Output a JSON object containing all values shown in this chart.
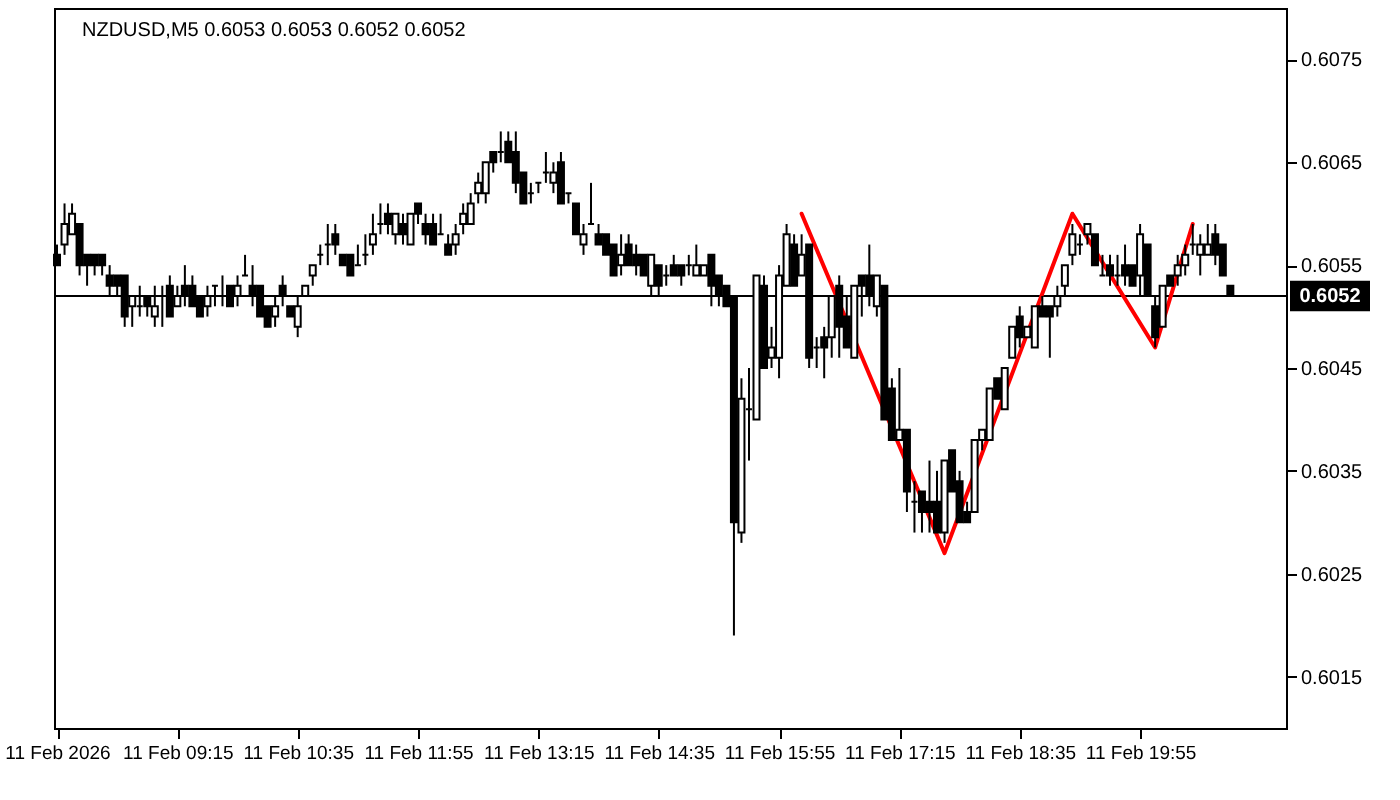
{
  "chart_data": {
    "type": "candlestick",
    "title": "NZDUSD,M5  0.6053 0.6053 0.6052 0.6052",
    "x": [
      "2026-02-11T07:55",
      "2026-02-11T08:00",
      "2026-02-11T08:05",
      "2026-02-11T08:10",
      "2026-02-11T08:15",
      "2026-02-11T08:20",
      "2026-02-11T08:25",
      "2026-02-11T08:30",
      "2026-02-11T08:35",
      "2026-02-11T08:40",
      "2026-02-11T08:45",
      "2026-02-11T08:50",
      "2026-02-11T08:55",
      "2026-02-11T09:00",
      "2026-02-11T09:05",
      "2026-02-11T09:10",
      "2026-02-11T09:15",
      "2026-02-11T09:20",
      "2026-02-11T09:25",
      "2026-02-11T09:30",
      "2026-02-11T09:35",
      "2026-02-11T09:40",
      "2026-02-11T09:45",
      "2026-02-11T09:50",
      "2026-02-11T09:55",
      "2026-02-11T10:00",
      "2026-02-11T10:05",
      "2026-02-11T10:10",
      "2026-02-11T10:15",
      "2026-02-11T10:20",
      "2026-02-11T10:25",
      "2026-02-11T10:30",
      "2026-02-11T10:35",
      "2026-02-11T10:40",
      "2026-02-11T10:45",
      "2026-02-11T10:50",
      "2026-02-11T10:55",
      "2026-02-11T11:00",
      "2026-02-11T11:05",
      "2026-02-11T11:10",
      "2026-02-11T11:15",
      "2026-02-11T11:20",
      "2026-02-11T11:25",
      "2026-02-11T11:30",
      "2026-02-11T11:35",
      "2026-02-11T11:40",
      "2026-02-11T11:45",
      "2026-02-11T11:50",
      "2026-02-11T11:55",
      "2026-02-11T12:00",
      "2026-02-11T12:05",
      "2026-02-11T12:10",
      "2026-02-11T12:15",
      "2026-02-11T12:20",
      "2026-02-11T12:25",
      "2026-02-11T12:30",
      "2026-02-11T12:35",
      "2026-02-11T12:40",
      "2026-02-11T12:45",
      "2026-02-11T12:50",
      "2026-02-11T12:55",
      "2026-02-11T13:00",
      "2026-02-11T13:05",
      "2026-02-11T13:10",
      "2026-02-11T13:15",
      "2026-02-11T13:20",
      "2026-02-11T13:25",
      "2026-02-11T13:30",
      "2026-02-11T13:35",
      "2026-02-11T13:40",
      "2026-02-11T13:45",
      "2026-02-11T13:50",
      "2026-02-11T13:55",
      "2026-02-11T14:00",
      "2026-02-11T14:05",
      "2026-02-11T14:10",
      "2026-02-11T14:15",
      "2026-02-11T14:20",
      "2026-02-11T14:25",
      "2026-02-11T14:30",
      "2026-02-11T14:35",
      "2026-02-11T14:40",
      "2026-02-11T14:45",
      "2026-02-11T14:50",
      "2026-02-11T14:55",
      "2026-02-11T15:00",
      "2026-02-11T15:05",
      "2026-02-11T15:10",
      "2026-02-11T15:15",
      "2026-02-11T15:20",
      "2026-02-11T15:25",
      "2026-02-11T15:30",
      "2026-02-11T15:35",
      "2026-02-11T15:40",
      "2026-02-11T15:45",
      "2026-02-11T15:50",
      "2026-02-11T15:55",
      "2026-02-11T16:00",
      "2026-02-11T16:05",
      "2026-02-11T16:10",
      "2026-02-11T16:15",
      "2026-02-11T16:20",
      "2026-02-11T16:25",
      "2026-02-11T16:30",
      "2026-02-11T16:35",
      "2026-02-11T16:40",
      "2026-02-11T16:45",
      "2026-02-11T16:50",
      "2026-02-11T16:55",
      "2026-02-11T17:00",
      "2026-02-11T17:05",
      "2026-02-11T17:10",
      "2026-02-11T17:15",
      "2026-02-11T17:20",
      "2026-02-11T17:25",
      "2026-02-11T17:30",
      "2026-02-11T17:35",
      "2026-02-11T17:40",
      "2026-02-11T17:45",
      "2026-02-11T17:50",
      "2026-02-11T17:55",
      "2026-02-11T18:00",
      "2026-02-11T18:05",
      "2026-02-11T18:10",
      "2026-02-11T18:15",
      "2026-02-11T18:20",
      "2026-02-11T18:25",
      "2026-02-11T18:30",
      "2026-02-11T18:35",
      "2026-02-11T18:40",
      "2026-02-11T18:45",
      "2026-02-11T18:50",
      "2026-02-11T18:55",
      "2026-02-11T19:00",
      "2026-02-11T19:05",
      "2026-02-11T19:10",
      "2026-02-11T19:15",
      "2026-02-11T19:20",
      "2026-02-11T19:25",
      "2026-02-11T19:30",
      "2026-02-11T19:35",
      "2026-02-11T19:40",
      "2026-02-11T19:45",
      "2026-02-11T19:50",
      "2026-02-11T19:55",
      "2026-02-11T20:00",
      "2026-02-11T20:05",
      "2026-02-11T20:10",
      "2026-02-11T20:15",
      "2026-02-11T20:20",
      "2026-02-11T20:25",
      "2026-02-11T20:30",
      "2026-02-11T20:35",
      "2026-02-11T20:40",
      "2026-02-11T20:45",
      "2026-02-11T20:50",
      "2026-02-11T20:55"
    ],
    "ohlc": [
      [
        0.6056,
        0.6057,
        0.6055,
        0.6055
      ],
      [
        0.6057,
        0.6061,
        0.6056,
        0.6059
      ],
      [
        0.6058,
        0.6061,
        0.6058,
        0.606
      ],
      [
        0.6059,
        0.6059,
        0.6054,
        0.6055
      ],
      [
        0.6056,
        0.6056,
        0.6053,
        0.6055
      ],
      [
        0.6056,
        0.6056,
        0.6054,
        0.6055
      ],
      [
        0.6056,
        0.6056,
        0.6054,
        0.6055
      ],
      [
        0.6054,
        0.6055,
        0.6052,
        0.6053
      ],
      [
        0.6054,
        0.6054,
        0.6052,
        0.6053
      ],
      [
        0.6054,
        0.6054,
        0.6049,
        0.605
      ],
      [
        0.6051,
        0.6052,
        0.6049,
        0.6052
      ],
      [
        0.6051,
        0.6053,
        0.605,
        0.6051
      ],
      [
        0.6052,
        0.6052,
        0.605,
        0.6051
      ],
      [
        0.605,
        0.6053,
        0.6049,
        0.6051
      ],
      [
        0.6052,
        0.6053,
        0.6049,
        0.6052
      ],
      [
        0.6053,
        0.6054,
        0.605,
        0.605
      ],
      [
        0.6051,
        0.6053,
        0.6051,
        0.6052
      ],
      [
        0.6053,
        0.6055,
        0.6051,
        0.6052
      ],
      [
        0.6053,
        0.6054,
        0.6051,
        0.6051
      ],
      [
        0.6052,
        0.6052,
        0.605,
        0.605
      ],
      [
        0.6051,
        0.6053,
        0.605,
        0.6052
      ],
      [
        0.6053,
        0.6053,
        0.6051,
        0.6053
      ],
      [
        0.6052,
        0.6054,
        0.6051,
        0.6052
      ],
      [
        0.6053,
        0.6053,
        0.6051,
        0.6051
      ],
      [
        0.6052,
        0.6054,
        0.6051,
        0.6053
      ],
      [
        0.6054,
        0.6056,
        0.6054,
        0.6054
      ],
      [
        0.6053,
        0.6055,
        0.6051,
        0.6052
      ],
      [
        0.6053,
        0.6053,
        0.605,
        0.605
      ],
      [
        0.6051,
        0.6051,
        0.6049,
        0.6049
      ],
      [
        0.605,
        0.6052,
        0.6049,
        0.6051
      ],
      [
        0.6053,
        0.6054,
        0.6051,
        0.6052
      ],
      [
        0.6051,
        0.6051,
        0.605,
        0.605
      ],
      [
        0.6049,
        0.6052,
        0.6048,
        0.6051
      ],
      [
        0.6052,
        0.6053,
        0.6052,
        0.6053
      ],
      [
        0.6054,
        0.6055,
        0.6053,
        0.6055
      ],
      [
        0.6056,
        0.6057,
        0.6055,
        0.6056
      ],
      [
        0.6057,
        0.6059,
        0.6055,
        0.6057
      ],
      [
        0.6058,
        0.6059,
        0.6056,
        0.6057
      ],
      [
        0.6056,
        0.6056,
        0.6055,
        0.6055
      ],
      [
        0.6056,
        0.6056,
        0.6054,
        0.6054
      ],
      [
        0.6055,
        0.6057,
        0.6055,
        0.6055
      ],
      [
        0.6056,
        0.6058,
        0.6055,
        0.6056
      ],
      [
        0.6057,
        0.606,
        0.6056,
        0.6058
      ],
      [
        0.6059,
        0.6061,
        0.6058,
        0.6059
      ],
      [
        0.606,
        0.6061,
        0.6058,
        0.6059
      ],
      [
        0.6058,
        0.606,
        0.6057,
        0.606
      ],
      [
        0.6059,
        0.606,
        0.6057,
        0.6058
      ],
      [
        0.6057,
        0.606,
        0.6057,
        0.606
      ],
      [
        0.6061,
        0.6061,
        0.6059,
        0.606
      ],
      [
        0.6059,
        0.606,
        0.6057,
        0.6058
      ],
      [
        0.6059,
        0.606,
        0.6057,
        0.6057
      ],
      [
        0.6058,
        0.606,
        0.6058,
        0.6058
      ],
      [
        0.6057,
        0.6058,
        0.6056,
        0.6056
      ],
      [
        0.6057,
        0.6059,
        0.6056,
        0.6058
      ],
      [
        0.6059,
        0.6061,
        0.6058,
        0.606
      ],
      [
        0.6059,
        0.6062,
        0.6059,
        0.6061
      ],
      [
        0.6062,
        0.6064,
        0.6061,
        0.6063
      ],
      [
        0.6062,
        0.6065,
        0.6061,
        0.6065
      ],
      [
        0.6066,
        0.6066,
        0.6064,
        0.6065
      ],
      [
        0.6066,
        0.6068,
        0.6065,
        0.6066
      ],
      [
        0.6067,
        0.6068,
        0.6065,
        0.6065
      ],
      [
        0.6066,
        0.6068,
        0.6062,
        0.6063
      ],
      [
        0.6064,
        0.6064,
        0.6061,
        0.6061
      ],
      [
        0.6062,
        0.6063,
        0.6061,
        0.6062
      ],
      [
        0.6063,
        0.6063,
        0.6062,
        0.6063
      ],
      [
        0.6064,
        0.6066,
        0.6063,
        0.6064
      ],
      [
        0.6063,
        0.6065,
        0.6062,
        0.6064
      ],
      [
        0.6065,
        0.6066,
        0.6061,
        0.6061
      ],
      [
        0.6062,
        0.6062,
        0.6061,
        0.6062
      ],
      [
        0.6061,
        0.6061,
        0.6058,
        0.6058
      ],
      [
        0.6057,
        0.6059,
        0.6056,
        0.6058
      ],
      [
        0.6059,
        0.6063,
        0.6059,
        0.6059
      ],
      [
        0.6058,
        0.6059,
        0.6057,
        0.6057
      ],
      [
        0.6058,
        0.6058,
        0.6056,
        0.6056
      ],
      [
        0.6057,
        0.6057,
        0.6054,
        0.6054
      ],
      [
        0.6055,
        0.6058,
        0.6054,
        0.6056
      ],
      [
        0.6057,
        0.6058,
        0.6055,
        0.6055
      ],
      [
        0.6056,
        0.6057,
        0.6054,
        0.6055
      ],
      [
        0.6056,
        0.6056,
        0.6054,
        0.6054
      ],
      [
        0.6053,
        0.6056,
        0.6052,
        0.6056
      ],
      [
        0.6055,
        0.6055,
        0.6052,
        0.6053
      ],
      [
        0.6054,
        0.6055,
        0.6053,
        0.6054
      ],
      [
        0.6055,
        0.6056,
        0.6054,
        0.6054
      ],
      [
        0.6055,
        0.6055,
        0.6053,
        0.6054
      ],
      [
        0.6055,
        0.6056,
        0.6054,
        0.6055
      ],
      [
        0.6054,
        0.6057,
        0.6054,
        0.6055
      ],
      [
        0.6054,
        0.6055,
        0.6054,
        0.6055
      ],
      [
        0.6056,
        0.6056,
        0.6051,
        0.6053
      ],
      [
        0.6054,
        0.6054,
        0.6051,
        0.6052
      ],
      [
        0.6053,
        0.6053,
        0.6051,
        0.6051
      ],
      [
        0.6052,
        0.6052,
        0.6019,
        0.603
      ],
      [
        0.6029,
        0.6044,
        0.6028,
        0.6042
      ],
      [
        0.6041,
        0.6045,
        0.6036,
        0.6041
      ],
      [
        0.604,
        0.6054,
        0.604,
        0.6054
      ],
      [
        0.6053,
        0.6054,
        0.6045,
        0.6045
      ],
      [
        0.6046,
        0.6049,
        0.6045,
        0.6047
      ],
      [
        0.6046,
        0.6055,
        0.6044,
        0.6054
      ],
      [
        0.6053,
        0.6059,
        0.6053,
        0.6058
      ],
      [
        0.6057,
        0.6058,
        0.6053,
        0.6053
      ],
      [
        0.6054,
        0.6058,
        0.6054,
        0.6056
      ],
      [
        0.6057,
        0.6057,
        0.6045,
        0.6046
      ],
      [
        0.6047,
        0.6048,
        0.6045,
        0.6047
      ],
      [
        0.6048,
        0.6049,
        0.6044,
        0.6047
      ],
      [
        0.6048,
        0.6052,
        0.6046,
        0.6052
      ],
      [
        0.6053,
        0.6054,
        0.6046,
        0.6049
      ],
      [
        0.605,
        0.6052,
        0.6047,
        0.6047
      ],
      [
        0.6046,
        0.6053,
        0.6046,
        0.6053
      ],
      [
        0.6054,
        0.6054,
        0.605,
        0.6053
      ],
      [
        0.6054,
        0.6057,
        0.6051,
        0.6052
      ],
      [
        0.6051,
        0.6054,
        0.605,
        0.6054
      ],
      [
        0.6053,
        0.6053,
        0.604,
        0.604
      ],
      [
        0.6043,
        0.6044,
        0.6038,
        0.6038
      ],
      [
        0.6038,
        0.6045,
        0.6038,
        0.6039
      ],
      [
        0.6039,
        0.6039,
        0.6031,
        0.6033
      ],
      [
        0.6032,
        0.6034,
        0.6029,
        0.6032
      ],
      [
        0.6033,
        0.6033,
        0.6029,
        0.6031
      ],
      [
        0.6032,
        0.6036,
        0.6029,
        0.6031
      ],
      [
        0.6032,
        0.6035,
        0.6029,
        0.6029
      ],
      [
        0.6029,
        0.6036,
        0.6028,
        0.6036
      ],
      [
        0.6037,
        0.6037,
        0.6033,
        0.6033
      ],
      [
        0.6034,
        0.6035,
        0.603,
        0.603
      ],
      [
        0.6031,
        0.6032,
        0.603,
        0.603
      ],
      [
        0.6031,
        0.6038,
        0.6031,
        0.6038
      ],
      [
        0.6038,
        0.6039,
        0.6037,
        0.6039
      ],
      [
        0.6038,
        0.6043,
        0.6038,
        0.6043
      ],
      [
        0.6044,
        0.6044,
        0.6042,
        0.6042
      ],
      [
        0.6041,
        0.6045,
        0.6041,
        0.6045
      ],
      [
        0.6046,
        0.6049,
        0.6046,
        0.6049
      ],
      [
        0.605,
        0.6051,
        0.6047,
        0.6048
      ],
      [
        0.6048,
        0.6049,
        0.6048,
        0.6049
      ],
      [
        0.6047,
        0.6051,
        0.6047,
        0.6051
      ],
      [
        0.6051,
        0.6052,
        0.605,
        0.605
      ],
      [
        0.6051,
        0.6051,
        0.6046,
        0.605
      ],
      [
        0.6051,
        0.6053,
        0.605,
        0.6052
      ],
      [
        0.6053,
        0.6055,
        0.6052,
        0.6055
      ],
      [
        0.6056,
        0.6059,
        0.6055,
        0.6058
      ],
      [
        0.6057,
        0.6058,
        0.6056,
        0.6057
      ],
      [
        0.6058,
        0.6059,
        0.6057,
        0.6059
      ],
      [
        0.6058,
        0.6058,
        0.6055,
        0.6055
      ],
      [
        0.6054,
        0.6056,
        0.6054,
        0.6054
      ],
      [
        0.6055,
        0.6056,
        0.6053,
        0.6054
      ],
      [
        0.6054,
        0.6056,
        0.6053,
        0.6054
      ],
      [
        0.6055,
        0.6057,
        0.6053,
        0.6054
      ],
      [
        0.6055,
        0.6055,
        0.6053,
        0.6053
      ],
      [
        0.6054,
        0.6059,
        0.6052,
        0.6058
      ],
      [
        0.6057,
        0.6057,
        0.6052,
        0.6052
      ],
      [
        0.6051,
        0.6052,
        0.6047,
        0.6048
      ],
      [
        0.6049,
        0.6053,
        0.6049,
        0.6053
      ],
      [
        0.6054,
        0.6054,
        0.6053,
        0.6053
      ],
      [
        0.6054,
        0.6056,
        0.6053,
        0.6055
      ],
      [
        0.6055,
        0.6057,
        0.6054,
        0.6056
      ],
      [
        0.6057,
        0.6059,
        0.6056,
        0.6057
      ],
      [
        0.6056,
        0.6058,
        0.6054,
        0.6057
      ],
      [
        0.6056,
        0.6059,
        0.6056,
        0.6057
      ],
      [
        0.6058,
        0.6059,
        0.6055,
        0.6056
      ],
      [
        0.6057,
        0.6057,
        0.6054,
        0.6054
      ],
      [
        0.6053,
        0.6053,
        0.6052,
        0.6052
      ]
    ],
    "series": [
      {
        "type": "line",
        "color": "#ff0000",
        "x": [
          "2026-02-11T16:10",
          "2026-02-11T17:45",
          "2026-02-11T19:10",
          "2026-02-11T20:05",
          "2026-02-11T20:30"
        ],
        "values": [
          0.606,
          0.6027,
          0.606,
          0.6047,
          0.6059
        ]
      }
    ],
    "xlim": [
      "2026-02-11T07:53",
      "2026-02-11T21:32"
    ],
    "xticks": [
      {
        "value": "2026-02-11T07:55",
        "label": "11 Feb 2026"
      },
      {
        "value": "2026-02-11T09:15",
        "label": "11 Feb 09:15"
      },
      {
        "value": "2026-02-11T10:35",
        "label": "11 Feb 10:35"
      },
      {
        "value": "2026-02-11T11:55",
        "label": "11 Feb 11:55"
      },
      {
        "value": "2026-02-11T13:15",
        "label": "11 Feb 13:15"
      },
      {
        "value": "2026-02-11T14:35",
        "label": "11 Feb 14:35"
      },
      {
        "value": "2026-02-11T15:55",
        "label": "11 Feb 15:55"
      },
      {
        "value": "2026-02-11T17:15",
        "label": "11 Feb 17:15"
      },
      {
        "value": "2026-02-11T18:35",
        "label": "11 Feb 18:35"
      },
      {
        "value": "2026-02-11T19:55",
        "label": "11 Feb 19:55"
      }
    ],
    "ylim": [
      0.601,
      0.608
    ],
    "yticks": [
      0.6015,
      0.6025,
      0.6035,
      0.6045,
      0.6055,
      0.6065,
      0.6075
    ],
    "ref_lines": [
      {
        "axis": "y",
        "value": 0.6052,
        "label": "0.6052",
        "color": "#000000"
      }
    ]
  }
}
